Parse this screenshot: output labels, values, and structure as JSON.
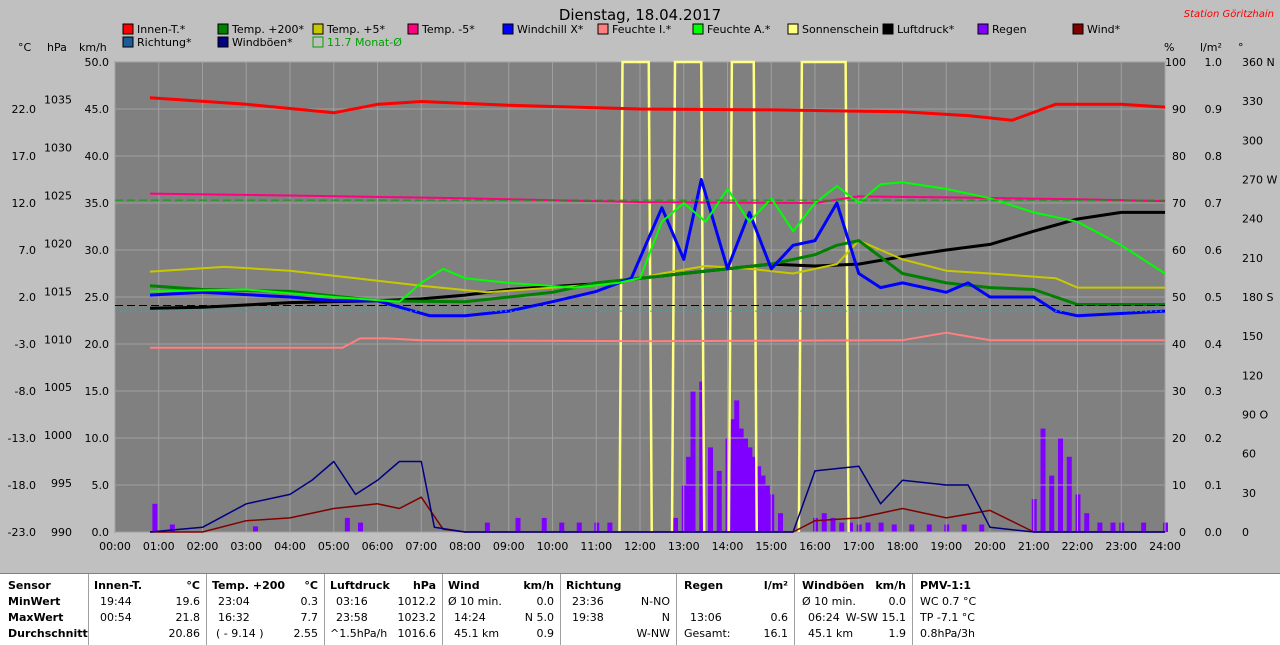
{
  "title": "Dienstag, 18.04.2017",
  "station": "Station Göritzhain",
  "colors": {
    "background": "#808080",
    "grid": "#a0a0a0",
    "innen": "#ff0000",
    "richtung": "#1e5a96",
    "temp200": "#008000",
    "windboen": "#000080",
    "temp5": "#c8c800",
    "monat": "#00a000",
    "temp_5": "#ff0080",
    "windchill": "#0000ff",
    "feuchte_i": "#ff8080",
    "feuchte_a": "#00ff00",
    "sonne": "#ffff80",
    "luftdruck": "#000000",
    "regen": "#8000ff",
    "wind": "#800000"
  },
  "legend": [
    {
      "label": "Innen-T.*",
      "color": "#ff0000"
    },
    {
      "label": "Temp. +200*",
      "color": "#008000"
    },
    {
      "label": "Temp. +5*",
      "color": "#c8c800"
    },
    {
      "label": "Temp. -5*",
      "color": "#ff0080"
    },
    {
      "label": "Windchill X*",
      "color": "#0000ff"
    },
    {
      "label": "Feuchte I.*",
      "color": "#ff8080"
    },
    {
      "label": "Feuchte A.*",
      "color": "#00ff00"
    },
    {
      "label": "Sonnenschein",
      "color": "#ffff80"
    },
    {
      "label": "Luftdruck*",
      "color": "#000000"
    },
    {
      "label": "Regen",
      "color": "#8000ff"
    },
    {
      "label": "Wind*",
      "color": "#800000"
    },
    {
      "label": "Richtung*",
      "color": "#1e5a96"
    },
    {
      "label": "Windböen*",
      "color": "#000080"
    },
    {
      "label": "11.7 Monat-Ø",
      "color": "#00a000",
      "outline": true
    }
  ],
  "units": {
    "celsius": "°C",
    "hpa": "hPa",
    "kmh": "km/h",
    "percent": "%",
    "lm2": "l/m²",
    "degree": "°"
  },
  "axes": {
    "celsius": [
      "22.0",
      "17.0",
      "12.0",
      "7.0",
      "2.0",
      "-3.0",
      "-8.0",
      "-13.0",
      "-18.0",
      "-23.0"
    ],
    "hpa": [
      "1035",
      "1030",
      "1025",
      "1020",
      "1015",
      "1010",
      "1005",
      "1000",
      "995",
      "990"
    ],
    "kmh": [
      "50.0",
      "45.0",
      "40.0",
      "35.0",
      "30.0",
      "25.0",
      "20.0",
      "15.0",
      "10.0",
      "5.0",
      "0.0"
    ],
    "percent": [
      "100",
      "90",
      "80",
      "70",
      "60",
      "50",
      "40",
      "30",
      "20",
      "10",
      "0"
    ],
    "lm2": [
      "1.0",
      "0.9",
      "0.8",
      "0.7",
      "0.6",
      "0.5",
      "0.4",
      "0.3",
      "0.2",
      "0.1",
      "0.0"
    ],
    "degree": [
      "360 N",
      "330",
      "300",
      "270 W",
      "240",
      "210",
      "180 S",
      "150",
      "120",
      "90 O",
      "60",
      "30",
      "0"
    ],
    "time": [
      "00:00",
      "01:00",
      "02:00",
      "03:00",
      "04:00",
      "05:00",
      "06:00",
      "07:00",
      "08:00",
      "09:00",
      "10:00",
      "11:00",
      "12:00",
      "13:00",
      "14:00",
      "15:00",
      "16:00",
      "17:00",
      "18:00",
      "19:00",
      "20:00",
      "21:00",
      "22:00",
      "23:00",
      "24:00"
    ]
  },
  "chart_data": {
    "type": "line",
    "title": "Dienstag, 18.04.2017",
    "x_range": [
      0,
      24
    ],
    "series": [
      {
        "name": "Innen-T.*",
        "axis": "kmh",
        "x": [
          0.8,
          3,
          5,
          6,
          7,
          9,
          12,
          15,
          18,
          19.5,
          20.5,
          21.5,
          23,
          24
        ],
        "y": [
          46.2,
          45.5,
          44.6,
          45.5,
          45.8,
          45.4,
          45.0,
          44.9,
          44.7,
          44.3,
          43.8,
          45.5,
          45.5,
          45.2
        ]
      },
      {
        "name": "Temp. -5*",
        "axis": "kmh",
        "x": [
          0.8,
          4,
          8,
          11,
          12,
          16,
          17,
          19,
          22,
          24
        ],
        "y": [
          36.0,
          35.8,
          35.5,
          35.2,
          35.1,
          35.0,
          35.7,
          35.6,
          35.4,
          35.2
        ]
      },
      {
        "name": "Feuchte I.*",
        "axis": "kmh",
        "x": [
          0.8,
          5.2,
          5.6,
          6.2,
          7,
          12,
          18,
          19,
          20,
          24
        ],
        "y": [
          19.6,
          19.6,
          20.6,
          20.6,
          20.4,
          20.3,
          20.4,
          21.2,
          20.4,
          20.4
        ]
      },
      {
        "name": "Luftdruck*",
        "axis": "kmh",
        "x": [
          0.8,
          2,
          4,
          6,
          7,
          8,
          9,
          11,
          12,
          13,
          14,
          15,
          16,
          17,
          18,
          19,
          20,
          21,
          22,
          23,
          24
        ],
        "y": [
          23.8,
          23.9,
          24.4,
          24.6,
          24.8,
          25.2,
          25.8,
          26.4,
          27.0,
          27.5,
          28.0,
          28.5,
          28.3,
          28.5,
          29.3,
          30.0,
          30.6,
          32.0,
          33.3,
          34.0,
          34.0
        ]
      },
      {
        "name": "Temp. +5*",
        "axis": "kmh",
        "x": [
          0.8,
          2.5,
          4,
          5.5,
          7,
          8.5,
          10,
          11.5,
          12.5,
          13.5,
          14.5,
          15.5,
          16.5,
          17,
          18,
          19,
          20,
          21.5,
          22,
          24
        ],
        "y": [
          27.7,
          28.2,
          27.8,
          27.0,
          26.2,
          25.5,
          26.0,
          26.5,
          27.5,
          28.3,
          28.0,
          27.5,
          28.5,
          31.0,
          29.0,
          27.8,
          27.5,
          27.0,
          26.0,
          26.0
        ]
      },
      {
        "name": "Temp. +200*",
        "axis": "kmh",
        "x": [
          0.8,
          2,
          4,
          6,
          8,
          10,
          11,
          12,
          13,
          14,
          15,
          16,
          16.5,
          17,
          18,
          19,
          20,
          21,
          22,
          24
        ],
        "y": [
          26.2,
          25.8,
          25.6,
          24.6,
          24.5,
          25.5,
          26.5,
          27.0,
          27.5,
          28.0,
          28.5,
          29.5,
          30.5,
          31.0,
          27.5,
          26.5,
          26.0,
          25.8,
          24.2,
          24.2
        ]
      },
      {
        "name": "Windchill X*",
        "axis": "kmh",
        "x": [
          0.8,
          2,
          4,
          5,
          6,
          7.2,
          8,
          9,
          10,
          11,
          11.8,
          12.5,
          13,
          13.4,
          14,
          14.5,
          15,
          15.5,
          16,
          16.5,
          17,
          17.5,
          18,
          19,
          19.5,
          20,
          21,
          21.5,
          22,
          24
        ],
        "y": [
          25.2,
          25.5,
          25.0,
          24.6,
          24.6,
          23.0,
          23.0,
          23.5,
          24.5,
          25.6,
          27.0,
          34.5,
          29.0,
          37.5,
          28.0,
          34.0,
          28.0,
          30.5,
          31.0,
          35.0,
          27.5,
          26.0,
          26.5,
          25.5,
          26.5,
          25.0,
          25.0,
          23.5,
          23.0,
          23.5
        ]
      },
      {
        "name": "Feuchte A.*",
        "axis": "kmh",
        "x": [
          0.8,
          3,
          5,
          6.5,
          7,
          7.5,
          8,
          9,
          10.5,
          11.5,
          12,
          12.5,
          13,
          13.5,
          14,
          14.5,
          15,
          15.5,
          16,
          16.5,
          17,
          17.5,
          18,
          19,
          20,
          21,
          22,
          23,
          24
        ],
        "y": [
          25.6,
          25.8,
          25.0,
          24.5,
          26.5,
          28.0,
          27.0,
          26.5,
          26.0,
          26.5,
          27.0,
          33.0,
          35.0,
          33.0,
          36.5,
          33.0,
          35.5,
          32.0,
          35.0,
          36.8,
          35.0,
          37.0,
          37.2,
          36.5,
          35.5,
          34.0,
          33.0,
          30.5,
          27.5
        ]
      },
      {
        "name": "Wind*",
        "axis": "kmh",
        "x": [
          0.8,
          2,
          3,
          4,
          5,
          6,
          6.5,
          7,
          7.5,
          8,
          12,
          15.5,
          16,
          17,
          18,
          19,
          20,
          21,
          24
        ],
        "y": [
          0,
          0,
          1.2,
          1.5,
          2.5,
          3.0,
          2.5,
          3.7,
          0.3,
          0,
          0,
          0,
          1.2,
          1.5,
          2.5,
          1.5,
          2.3,
          0,
          0
        ]
      },
      {
        "name": "Windböen*",
        "axis": "kmh",
        "x": [
          0.8,
          2,
          3,
          4,
          4.5,
          5,
          5.5,
          6,
          6.5,
          7,
          7.3,
          8,
          12,
          15.5,
          16,
          17,
          17.5,
          18,
          19,
          19.5,
          20,
          21,
          24
        ],
        "y": [
          0,
          0.5,
          3.0,
          4.0,
          5.5,
          7.5,
          4.0,
          5.5,
          7.5,
          7.5,
          0.5,
          0,
          0,
          0,
          6.5,
          7.0,
          3.0,
          5.5,
          5.0,
          5.0,
          0.5,
          0,
          0
        ]
      }
    ],
    "sunshine_intervals": [
      [
        11.6,
        12.2
      ],
      [
        12.8,
        13.4
      ],
      [
        14.1,
        14.6
      ],
      [
        15.7,
        16.7
      ]
    ],
    "rain_bars": {
      "axis": "kmh",
      "x": [
        0.9,
        1.3,
        3.2,
        5.3,
        5.6,
        8.5,
        9.2,
        9.8,
        10.2,
        10.6,
        11.0,
        11.3,
        12.8,
        13.0,
        13.1,
        13.2,
        13.4,
        13.6,
        13.8,
        14.0,
        14.1,
        14.2,
        14.3,
        14.4,
        14.5,
        14.6,
        14.7,
        14.8,
        14.9,
        15.0,
        15.2,
        16.0,
        16.2,
        16.4,
        16.6,
        16.8,
        17.0,
        17.2,
        17.5,
        17.8,
        18.2,
        18.6,
        19.0,
        19.4,
        19.8,
        21.0,
        21.2,
        21.4,
        21.6,
        21.8,
        22.0,
        22.2,
        22.5,
        22.8,
        23.0,
        23.5,
        24.0
      ],
      "y": [
        3.0,
        0.8,
        0.6,
        1.5,
        1.0,
        1.0,
        1.5,
        1.5,
        1.0,
        1.0,
        1.0,
        1.0,
        1.5,
        5.0,
        8.0,
        15.0,
        16.0,
        9.0,
        6.5,
        10.0,
        12.0,
        14.0,
        11.0,
        10.0,
        9.0,
        8.0,
        7.0,
        6.0,
        5.0,
        4.0,
        2.0,
        1.5,
        2.0,
        1.5,
        1.0,
        1.0,
        0.8,
        1.0,
        1.0,
        0.8,
        0.8,
        0.8,
        0.8,
        0.8,
        0.8,
        3.5,
        11.0,
        6.0,
        10.0,
        8.0,
        4.0,
        2.0,
        1.0,
        1.0,
        1.0,
        1.0,
        1.0
      ]
    },
    "reference_lines": [
      {
        "name": "11.7 Monat-Ø",
        "axis": "kmh",
        "y": 35.3,
        "style": "dashed",
        "color": "#00a000"
      },
      {
        "name": "0 °C",
        "axis": "kmh",
        "y": 24.1,
        "style": "dashed",
        "color": "#000000"
      },
      {
        "axis": "kmh",
        "y": 23.5,
        "style": "dotted",
        "color": "#00c0c0"
      }
    ],
    "grid": true
  },
  "stats": {
    "row_labels": [
      "Sensor",
      "MinWert",
      "MaxWert",
      "Durchschnitt"
    ],
    "innen": {
      "title": "Innen-T.",
      "unit": "°C",
      "min_time": "19:44",
      "min_val": "19.6",
      "max_time": "00:54",
      "max_val": "21.8",
      "avg": "20.86"
    },
    "temp": {
      "title": "Temp. +200",
      "unit": "°C",
      "min_time": "23:04",
      "min_val": "0.3",
      "max_time": "16:32",
      "max_val": "7.7",
      "avg_label": "( - 9.14 )",
      "avg": "2.55"
    },
    "luft": {
      "title": "Luftdruck",
      "unit": "hPa",
      "min_time": "03:16",
      "min_val": "1012.2",
      "max_time": "23:58",
      "max_val": "1023.2",
      "avg_label": "^1.5hPa/h",
      "avg": "1016.6"
    },
    "wind": {
      "title": "Wind",
      "unit": "km/h",
      "min_time": "Ø 10 min.",
      "min_val": "0.0",
      "max_time": "14:24",
      "max_val": "N 5.0",
      "avg_label": "45.1 km",
      "avg": "0.9"
    },
    "richt": {
      "title": "Richtung",
      "min_time": "23:36",
      "min_val": "N-NO",
      "max_time": "19:38",
      "max_val": "N",
      "avg": "W-NW"
    },
    "regen": {
      "title": "Regen",
      "unit": "l/m²",
      "max_time": "13:06",
      "max_val": "0.6",
      "avg_label": "Gesamt:",
      "avg": "16.1"
    },
    "boen": {
      "title": "Windböen",
      "unit": "km/h",
      "min_time": "Ø 10 min.",
      "min_val": "0.0",
      "max_time": "06:24",
      "max_val": "W-SW 15.1",
      "avg_label": "45.1 km",
      "avg": "1.9"
    },
    "pmv": {
      "title": "PMV-1:1",
      "min_val": "WC 0.7 °C",
      "max_val": "TP -7.1 °C",
      "avg": "0.8hPa/3h"
    }
  }
}
